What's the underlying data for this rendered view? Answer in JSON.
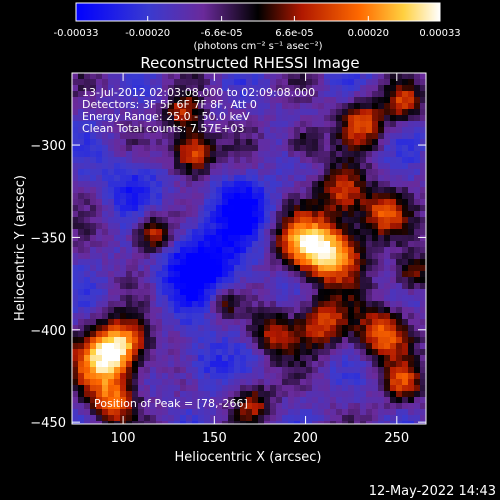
{
  "title": "Reconstructed RHESSI Image",
  "colorbar": {
    "tick_labels": [
      "-0.00033",
      "-0.00020",
      "-6.6e-05",
      "6.6e-05",
      "0.00020",
      "0.00033"
    ],
    "tick_values": [
      -0.00033,
      -0.0002,
      -6.6e-05,
      6.6e-05,
      0.0002,
      0.00033
    ],
    "range": [
      -0.00033,
      0.00033
    ],
    "unit_label": "(photons cm⁻² s⁻¹ asec⁻²)"
  },
  "overlay": {
    "line1": "13-Jul-2012 02:03:08.000 to 02:09:08.000",
    "line2": "Detectors: 3F 5F 6F 7F 8F, Att 0",
    "line3": "Energy Range: 25.0 - 50.0 keV",
    "line4": "Clean    Total counts: 7.57E+03",
    "peak": "Position of Peak = [78,-266]"
  },
  "axes": {
    "xlabel": "Heliocentric X (arcsec)",
    "ylabel": "Heliocentric Y (arcsec)",
    "xlim": [
      72,
      266
    ],
    "ylim": [
      -451,
      -261
    ],
    "x_ticks": [
      100,
      150,
      200,
      250
    ],
    "y_ticks": [
      -300,
      -350,
      -400,
      -450
    ]
  },
  "footer_timestamp": "12-May-2022 14:43",
  "colors": {
    "background": "#000000",
    "colormap": [
      "#0000ff",
      "#4a3bb0",
      "#6a2a9a",
      "#000000",
      "#c81e00",
      "#ff7000",
      "#ffff80",
      "#ffffff"
    ]
  }
}
